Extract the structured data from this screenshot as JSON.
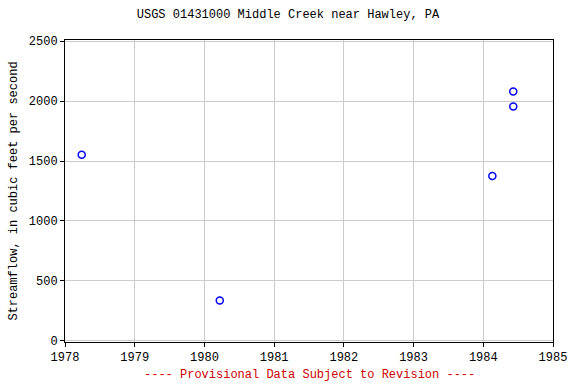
{
  "chart_data": {
    "type": "scatter",
    "title": "USGS 01431000 Middle Creek near Hawley, PA",
    "y_label": "Streamflow, in cubic feet per second",
    "annotations": [
      "---- Provisional Data Subject to Revision ----"
    ],
    "x": [
      1978.24,
      1980.22,
      1984.13,
      1984.43,
      1984.43
    ],
    "values": [
      1552,
      336,
      1376,
      2080,
      1955
    ],
    "color": "#0000ff",
    "marker": "circle-open",
    "xlim": [
      1978,
      1985
    ],
    "xticks": [
      1978,
      1979,
      1980,
      1981,
      1982,
      1983,
      1984,
      1985
    ],
    "ylim": [
      -10,
      2510
    ],
    "yticks": [
      0,
      500,
      1000,
      1500,
      2000,
      2500
    ],
    "grid": true
  }
}
